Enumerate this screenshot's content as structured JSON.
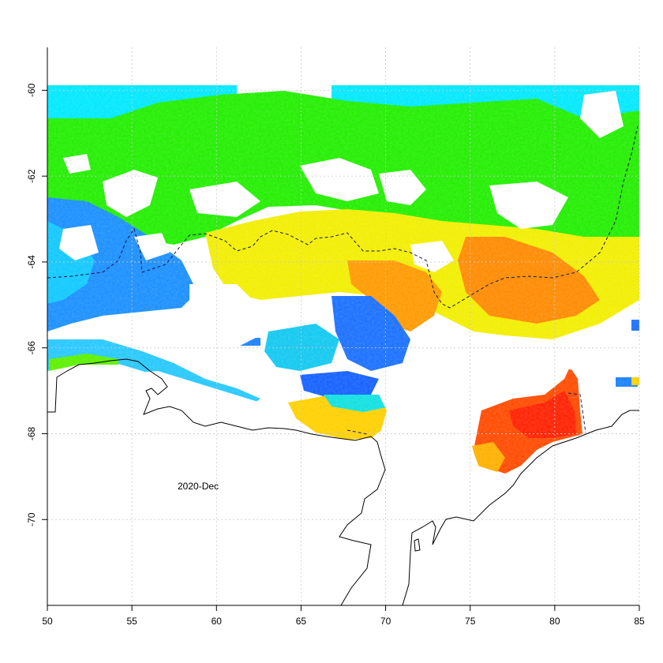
{
  "annotation": "2020-Dec",
  "axes": {
    "x": {
      "range": [
        50,
        85
      ],
      "ticks": [
        "50",
        "55",
        "60",
        "65",
        "70",
        "75",
        "80",
        "85"
      ]
    },
    "y": {
      "range": [
        -72,
        -59
      ],
      "ticks": [
        "-60",
        "-62",
        "-64",
        "-66",
        "-68",
        "-70"
      ]
    }
  },
  "grid": "dotted",
  "colors": {
    "low": "#0044ee",
    "cyan": "#00eeff",
    "green": "#22ee00",
    "yellow": "#ffee00",
    "orange": "#ff8800",
    "high": "#ff2200",
    "coast": "#000000",
    "front": "#000000"
  }
}
